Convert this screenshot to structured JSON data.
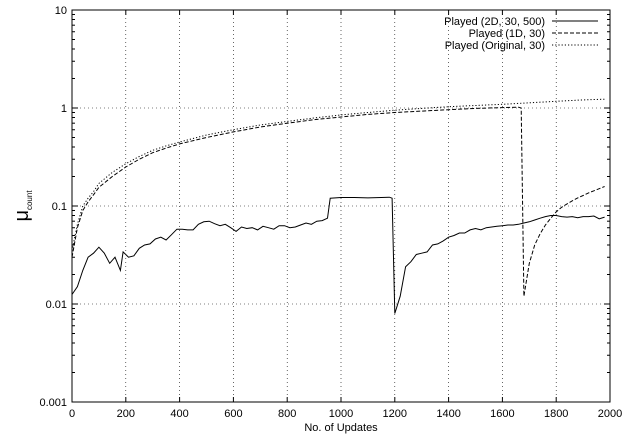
{
  "chart_data": {
    "type": "line",
    "title": "",
    "xlabel": "No. of Updates",
    "ylabel_main": "μ",
    "ylabel_sub": "count",
    "x_range": [
      0,
      2000
    ],
    "y_range": [
      0.001,
      10
    ],
    "y_scale": "log",
    "grid": true,
    "grid_style": "dotted",
    "legend_position": "top-right",
    "x_ticks": [
      0,
      200,
      400,
      600,
      800,
      1000,
      1200,
      1400,
      1600,
      1800,
      2000
    ],
    "y_ticks": [
      {
        "value": 0.001,
        "label": "0.001"
      },
      {
        "value": 0.01,
        "label": "0.01"
      },
      {
        "value": 0.1,
        "label": "0.1"
      },
      {
        "value": 1,
        "label": "1"
      },
      {
        "value": 10,
        "label": "10"
      }
    ],
    "series": [
      {
        "name": "Played (2D, 30, 500)",
        "dash": "solid",
        "points": [
          [
            0,
            0.0125
          ],
          [
            20,
            0.015
          ],
          [
            40,
            0.022
          ],
          [
            60,
            0.03
          ],
          [
            80,
            0.033
          ],
          [
            100,
            0.038
          ],
          [
            120,
            0.033
          ],
          [
            140,
            0.026
          ],
          [
            160,
            0.03
          ],
          [
            180,
            0.022
          ],
          [
            190,
            0.034
          ],
          [
            210,
            0.03
          ],
          [
            230,
            0.031
          ],
          [
            250,
            0.037
          ],
          [
            270,
            0.04
          ],
          [
            290,
            0.041
          ],
          [
            310,
            0.046
          ],
          [
            330,
            0.048
          ],
          [
            350,
            0.045
          ],
          [
            370,
            0.051
          ],
          [
            390,
            0.058
          ],
          [
            410,
            0.058
          ],
          [
            430,
            0.057
          ],
          [
            450,
            0.057
          ],
          [
            470,
            0.065
          ],
          [
            490,
            0.069
          ],
          [
            510,
            0.07
          ],
          [
            530,
            0.066
          ],
          [
            550,
            0.063
          ],
          [
            570,
            0.065
          ],
          [
            590,
            0.06
          ],
          [
            610,
            0.055
          ],
          [
            630,
            0.061
          ],
          [
            650,
            0.059
          ],
          [
            670,
            0.06
          ],
          [
            690,
            0.057
          ],
          [
            710,
            0.062
          ],
          [
            730,
            0.06
          ],
          [
            750,
            0.058
          ],
          [
            770,
            0.063
          ],
          [
            790,
            0.063
          ],
          [
            810,
            0.06
          ],
          [
            830,
            0.061
          ],
          [
            850,
            0.064
          ],
          [
            870,
            0.067
          ],
          [
            890,
            0.065
          ],
          [
            910,
            0.07
          ],
          [
            930,
            0.071
          ],
          [
            950,
            0.075
          ],
          [
            960,
            0.12
          ],
          [
            1000,
            0.122
          ],
          [
            1050,
            0.122
          ],
          [
            1100,
            0.121
          ],
          [
            1150,
            0.122
          ],
          [
            1180,
            0.123
          ],
          [
            1190,
            0.12
          ],
          [
            1200,
            0.008
          ],
          [
            1220,
            0.012
          ],
          [
            1240,
            0.024
          ],
          [
            1260,
            0.027
          ],
          [
            1280,
            0.032
          ],
          [
            1300,
            0.033
          ],
          [
            1320,
            0.034
          ],
          [
            1340,
            0.04
          ],
          [
            1360,
            0.041
          ],
          [
            1380,
            0.044
          ],
          [
            1400,
            0.048
          ],
          [
            1420,
            0.05
          ],
          [
            1440,
            0.053
          ],
          [
            1460,
            0.053
          ],
          [
            1480,
            0.057
          ],
          [
            1500,
            0.059
          ],
          [
            1520,
            0.057
          ],
          [
            1540,
            0.06
          ],
          [
            1560,
            0.061
          ],
          [
            1580,
            0.062
          ],
          [
            1600,
            0.063
          ],
          [
            1620,
            0.064
          ],
          [
            1640,
            0.064
          ],
          [
            1660,
            0.065
          ],
          [
            1680,
            0.067
          ],
          [
            1700,
            0.069
          ],
          [
            1720,
            0.072
          ],
          [
            1740,
            0.075
          ],
          [
            1760,
            0.078
          ],
          [
            1780,
            0.08
          ],
          [
            1800,
            0.08
          ],
          [
            1820,
            0.078
          ],
          [
            1840,
            0.077
          ],
          [
            1860,
            0.078
          ],
          [
            1880,
            0.076
          ],
          [
            1900,
            0.078
          ],
          [
            1920,
            0.078
          ],
          [
            1940,
            0.079
          ],
          [
            1960,
            0.074
          ],
          [
            1980,
            0.077
          ]
        ]
      },
      {
        "name": "Played (1D, 30)",
        "dash": "dashed",
        "points": [
          [
            0,
            0.03
          ],
          [
            20,
            0.06
          ],
          [
            40,
            0.09
          ],
          [
            60,
            0.11
          ],
          [
            80,
            0.13
          ],
          [
            100,
            0.155
          ],
          [
            150,
            0.2
          ],
          [
            200,
            0.25
          ],
          [
            250,
            0.3
          ],
          [
            300,
            0.35
          ],
          [
            350,
            0.39
          ],
          [
            400,
            0.43
          ],
          [
            500,
            0.5
          ],
          [
            600,
            0.57
          ],
          [
            700,
            0.64
          ],
          [
            800,
            0.7
          ],
          [
            900,
            0.76
          ],
          [
            1000,
            0.81
          ],
          [
            1100,
            0.86
          ],
          [
            1200,
            0.9
          ],
          [
            1300,
            0.93
          ],
          [
            1400,
            0.96
          ],
          [
            1500,
            0.99
          ],
          [
            1600,
            1.01
          ],
          [
            1660,
            1.02
          ],
          [
            1670,
            1.0
          ],
          [
            1680,
            0.012
          ],
          [
            1700,
            0.026
          ],
          [
            1720,
            0.04
          ],
          [
            1740,
            0.052
          ],
          [
            1760,
            0.064
          ],
          [
            1780,
            0.075
          ],
          [
            1800,
            0.087
          ],
          [
            1820,
            0.097
          ],
          [
            1840,
            0.105
          ],
          [
            1860,
            0.113
          ],
          [
            1880,
            0.121
          ],
          [
            1900,
            0.128
          ],
          [
            1920,
            0.136
          ],
          [
            1940,
            0.143
          ],
          [
            1960,
            0.15
          ],
          [
            1980,
            0.158
          ]
        ]
      },
      {
        "name": "Played (Original, 30)",
        "dash": "dotted",
        "points": [
          [
            0,
            0.035
          ],
          [
            20,
            0.065
          ],
          [
            40,
            0.1
          ],
          [
            60,
            0.12
          ],
          [
            80,
            0.14
          ],
          [
            100,
            0.17
          ],
          [
            150,
            0.22
          ],
          [
            200,
            0.27
          ],
          [
            250,
            0.32
          ],
          [
            300,
            0.37
          ],
          [
            350,
            0.41
          ],
          [
            400,
            0.45
          ],
          [
            500,
            0.53
          ],
          [
            600,
            0.6
          ],
          [
            700,
            0.67
          ],
          [
            800,
            0.73
          ],
          [
            900,
            0.79
          ],
          [
            1000,
            0.85
          ],
          [
            1100,
            0.9
          ],
          [
            1200,
            0.95
          ],
          [
            1300,
            0.99
          ],
          [
            1400,
            1.03
          ],
          [
            1500,
            1.06
          ],
          [
            1600,
            1.09
          ],
          [
            1700,
            1.13
          ],
          [
            1800,
            1.17
          ],
          [
            1900,
            1.21
          ],
          [
            1980,
            1.23
          ]
        ]
      }
    ]
  }
}
